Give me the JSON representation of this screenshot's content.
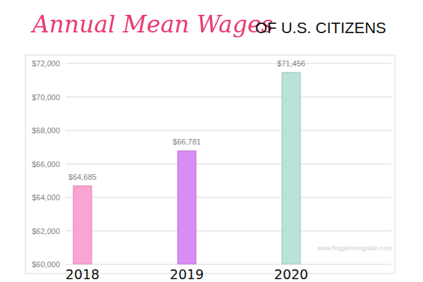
{
  "chart_data": {
    "type": "bar",
    "title": "Annual Mean Wages",
    "subtitle": "OF U.S. CITIZENS",
    "categories": [
      "2018",
      "2019",
      "2020"
    ],
    "values": [
      64685,
      66781,
      71456
    ],
    "value_labels": [
      "$64,685",
      "$66,781",
      "$71,456"
    ],
    "colors": [
      "#fba3d3",
      "#d98cf3",
      "#b9e3d8"
    ],
    "ylim": [
      60000,
      72000
    ],
    "yticks": [
      {
        "value": 60000,
        "label": "$60,000"
      },
      {
        "value": 62000,
        "label": "$62,000"
      },
      {
        "value": 64000,
        "label": "$64,000"
      },
      {
        "value": 66000,
        "label": "$66,000"
      },
      {
        "value": 68000,
        "label": "$68,000"
      },
      {
        "value": 70000,
        "label": "$70,000"
      },
      {
        "value": 72000,
        "label": "$72,000"
      }
    ],
    "grid": true,
    "data_labels": true,
    "annotations": [
      "www.frugalmomguide.com"
    ]
  }
}
